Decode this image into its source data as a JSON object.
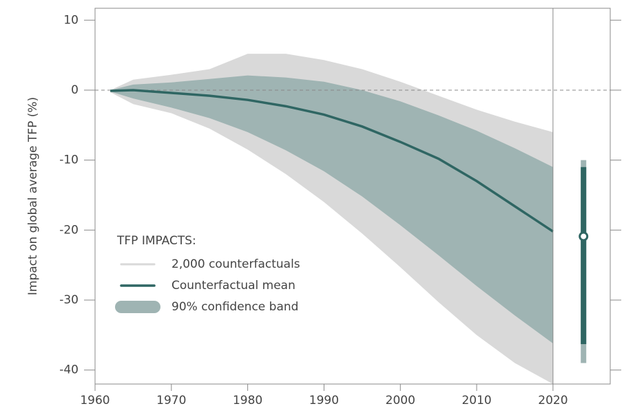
{
  "chart_data": {
    "type": "line",
    "y_label": "Impact on global average TFP (%)",
    "x": [
      1962,
      1965,
      1970,
      1975,
      1980,
      1985,
      1990,
      1995,
      2000,
      2005,
      2010,
      2015,
      2020
    ],
    "envelope": {
      "name": "2,000 counterfactuals",
      "color": "#d9d9d9",
      "upper": [
        0,
        1.5,
        2.2,
        3,
        5.2,
        5.2,
        4.3,
        3,
        1.2,
        -0.8,
        -2.8,
        -4.5,
        -6
      ],
      "lower": [
        -0.3,
        -2,
        -3.3,
        -5.5,
        -8.5,
        -12,
        -16,
        -20.5,
        -25.3,
        -30.3,
        -35,
        -39,
        -42
      ]
    },
    "band": {
      "name": "90% confidence band",
      "color": "#9fb4b3",
      "upper": [
        0,
        0.8,
        1.1,
        1.6,
        2.1,
        1.8,
        1.2,
        0,
        -1.6,
        -3.6,
        -5.8,
        -8.3,
        -11
      ],
      "lower": [
        -0.2,
        -1.2,
        -2.5,
        -4,
        -6,
        -8.6,
        -11.6,
        -15.2,
        -19.3,
        -23.6,
        -28,
        -32.2,
        -36.2
      ]
    },
    "mean": {
      "name": "Counterfactual mean",
      "color": "#2f6663",
      "values": [
        -0.1,
        0,
        -0.4,
        -0.8,
        -1.4,
        -2.3,
        -3.5,
        -5.2,
        -7.4,
        -9.8,
        -13,
        -16.6,
        -20.2
      ]
    },
    "legend_title": "TFP IMPACTS:",
    "summary": {
      "x": 2024,
      "mean": -20.9,
      "ci": [
        -36.3,
        -11
      ],
      "range": [
        -39,
        -10
      ]
    },
    "divider_x": 2020,
    "xlim": [
      1960,
      2027.5
    ],
    "ylim": [
      -42,
      11.7
    ],
    "xticks": [
      1960,
      1970,
      1980,
      1990,
      2000,
      2010,
      2020
    ],
    "yticks": [
      10,
      0,
      -10,
      -20,
      -30,
      -40
    ]
  }
}
